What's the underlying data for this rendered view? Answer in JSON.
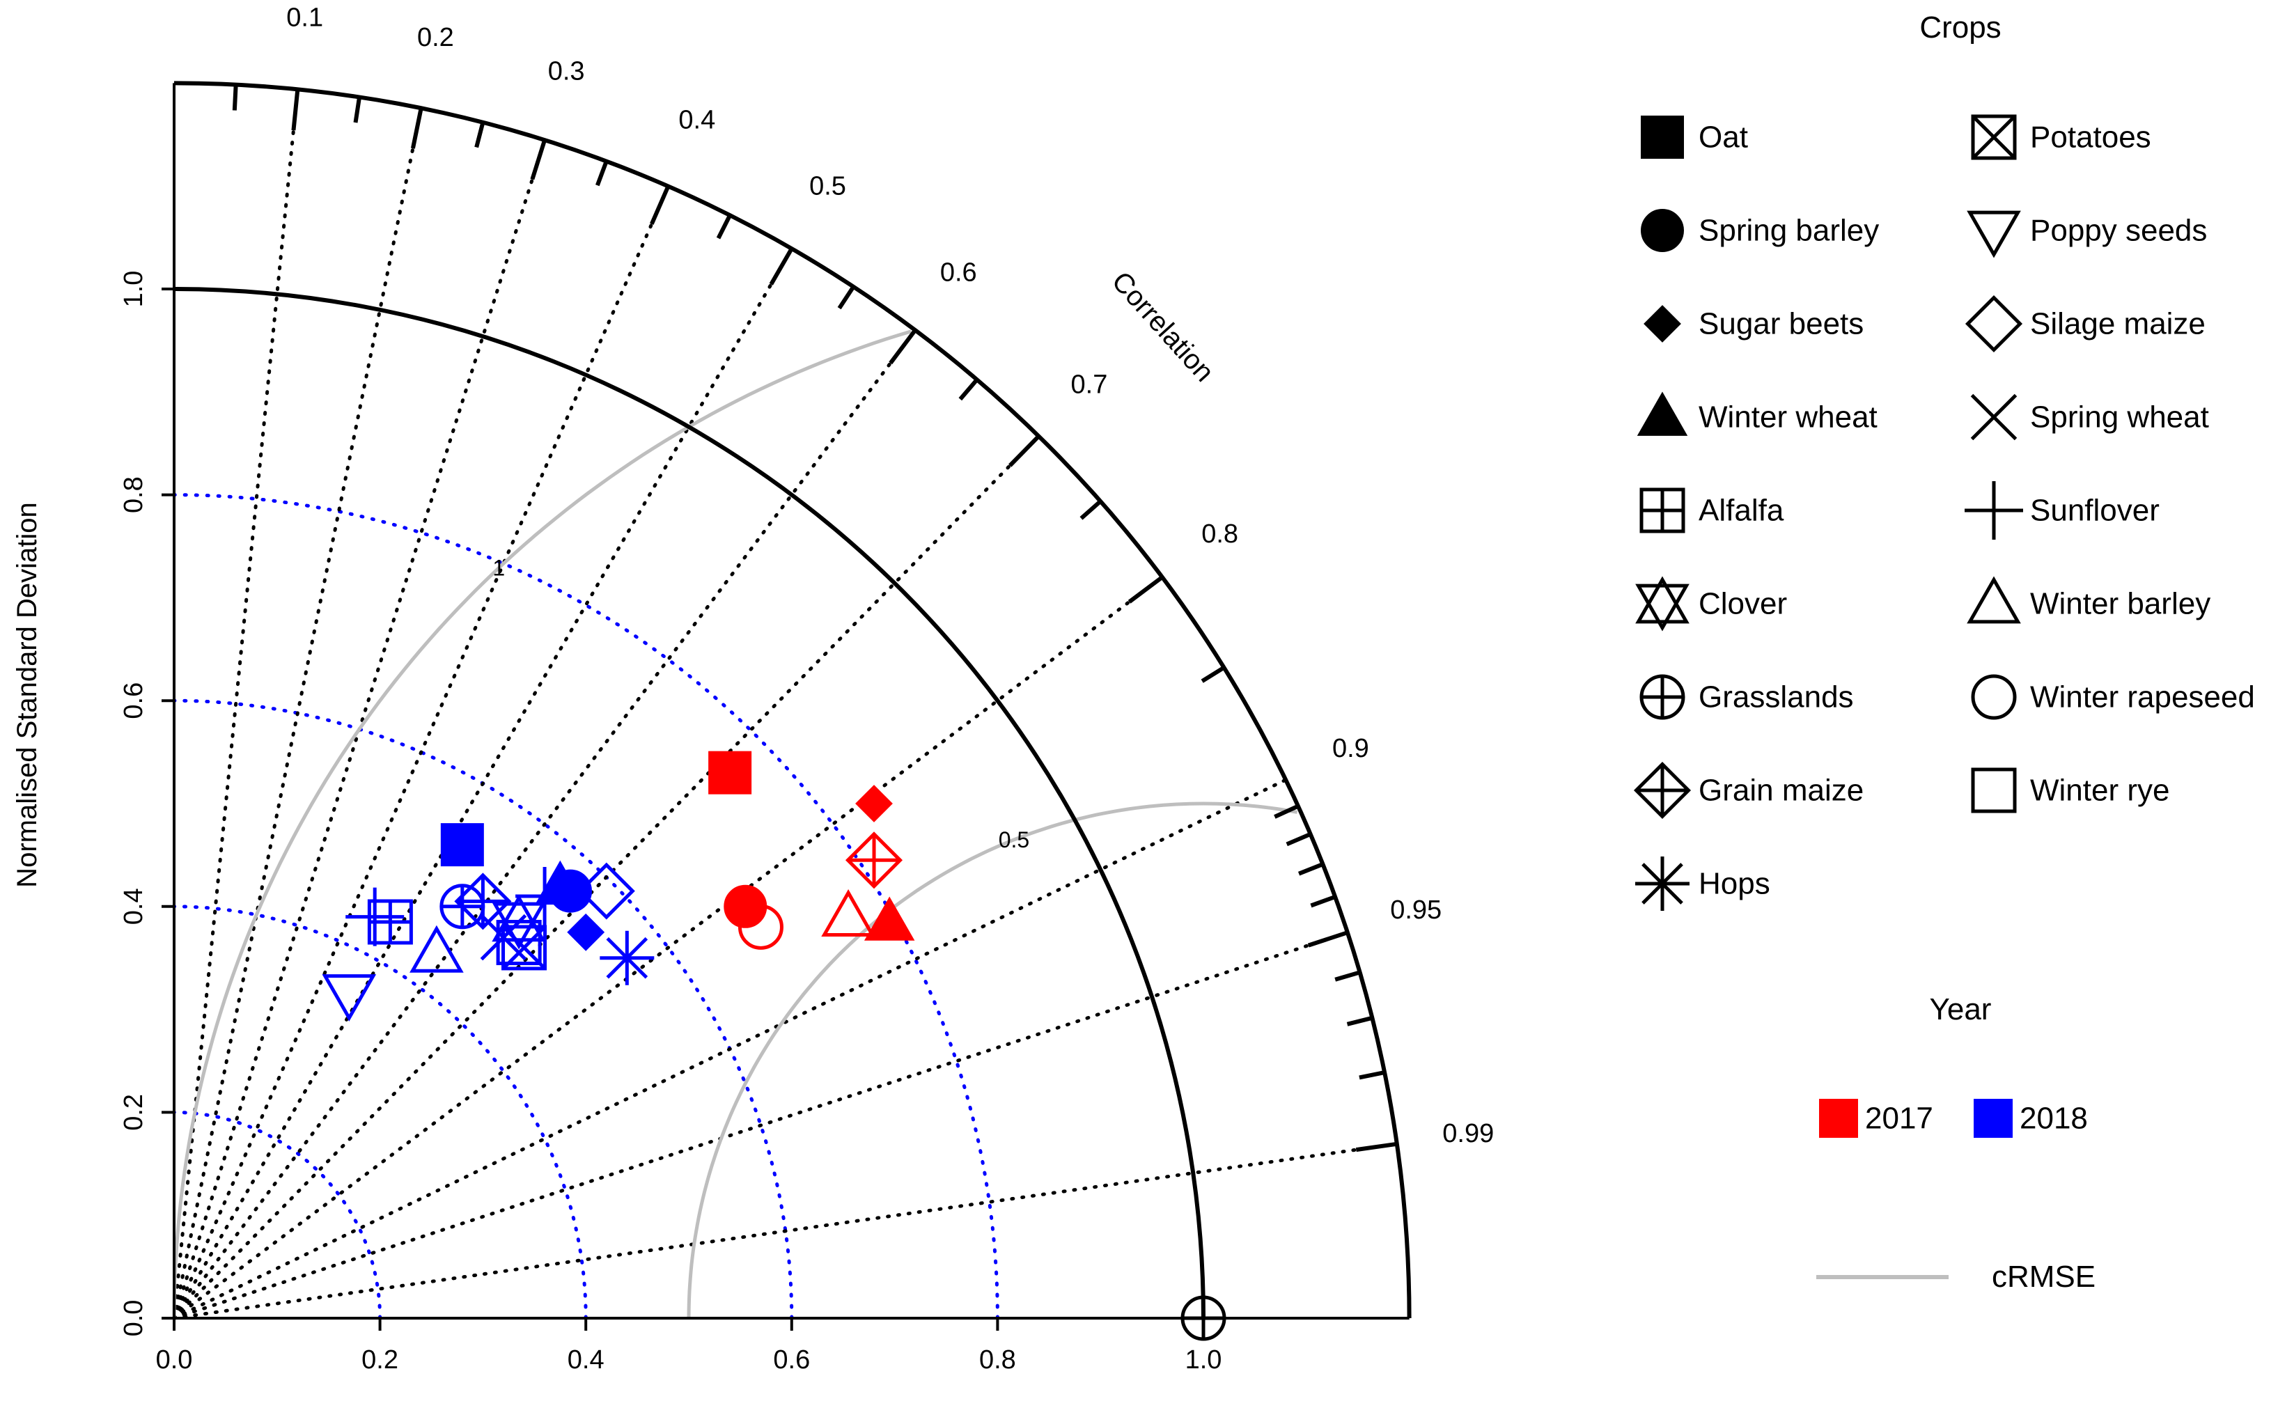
{
  "chart_data": {
    "type": "taylor-diagram",
    "ylabel": "Normalised Standard Deviation",
    "axis_title_correlation": "Correlation",
    "sd_range": [
      0,
      1.2
    ],
    "sd_ticks": [
      "0.0",
      "0.2",
      "0.4",
      "0.6",
      "0.8",
      "1.0"
    ],
    "x_ticks": [
      "0.0",
      "0.2",
      "0.4",
      "0.6",
      "0.8",
      "1.0"
    ],
    "correlation_labels": [
      "0.1",
      "0.2",
      "0.3",
      "0.4",
      "0.5",
      "0.6",
      "0.7",
      "0.8",
      "0.9",
      "0.95",
      "0.99"
    ],
    "sd_reference_circles": [
      0.2,
      0.4,
      0.6,
      0.8
    ],
    "crmse_contours": [
      {
        "value": 0.5,
        "label": "0.5"
      },
      {
        "value": 1.0,
        "label": "1"
      }
    ],
    "reference_point": {
      "sd": 1.0,
      "corr": 1.0
    },
    "crops_legend_title": "Crops",
    "crops": [
      {
        "name": "Oat",
        "marker": "filled-square"
      },
      {
        "name": "Spring barley",
        "marker": "filled-circle"
      },
      {
        "name": "Sugar beets",
        "marker": "filled-diamond"
      },
      {
        "name": "Winter wheat",
        "marker": "filled-triangle"
      },
      {
        "name": "Alfalfa",
        "marker": "square-plus"
      },
      {
        "name": "Clover",
        "marker": "star-of-david"
      },
      {
        "name": "Grasslands",
        "marker": "circle-plus"
      },
      {
        "name": "Grain maize",
        "marker": "diamond-plus"
      },
      {
        "name": "Hops",
        "marker": "asterisk"
      },
      {
        "name": "Potatoes",
        "marker": "square-x"
      },
      {
        "name": "Poppy seeds",
        "marker": "down-triangle"
      },
      {
        "name": "Silage maize",
        "marker": "open-diamond"
      },
      {
        "name": "Spring wheat",
        "marker": "x"
      },
      {
        "name": "Sunflover",
        "marker": "plus"
      },
      {
        "name": "Winter barley",
        "marker": "open-triangle"
      },
      {
        "name": "Winter rapeseed",
        "marker": "open-circle"
      },
      {
        "name": "Winter rye",
        "marker": "open-square"
      }
    ],
    "year_legend_title": "Year",
    "years": [
      {
        "label": "2017",
        "color": "#ff0000"
      },
      {
        "label": "2018",
        "color": "#0000ff"
      }
    ],
    "crmse_legend_label": "cRMSE",
    "crmse_color": "#bebebe",
    "points": [
      {
        "year": "2017",
        "marker": "filled-square",
        "x": 0.54,
        "y": 0.53
      },
      {
        "year": "2017",
        "marker": "filled-circle",
        "x": 0.555,
        "y": 0.4
      },
      {
        "year": "2017",
        "marker": "open-circle",
        "x": 0.57,
        "y": 0.38
      },
      {
        "year": "2017",
        "marker": "open-triangle",
        "x": 0.655,
        "y": 0.39
      },
      {
        "year": "2017",
        "marker": "filled-triangle",
        "x": 0.695,
        "y": 0.385
      },
      {
        "year": "2017",
        "marker": "filled-diamond",
        "x": 0.68,
        "y": 0.5
      },
      {
        "year": "2017",
        "marker": "diamond-plus",
        "x": 0.68,
        "y": 0.445
      },
      {
        "year": "2018",
        "marker": "filled-square",
        "x": 0.28,
        "y": 0.46
      },
      {
        "year": "2018",
        "marker": "plus",
        "x": 0.195,
        "y": 0.39
      },
      {
        "year": "2018",
        "marker": "square-plus",
        "x": 0.21,
        "y": 0.385
      },
      {
        "year": "2018",
        "marker": "down-triangle",
        "x": 0.17,
        "y": 0.315
      },
      {
        "year": "2018",
        "marker": "open-triangle",
        "x": 0.255,
        "y": 0.355
      },
      {
        "year": "2018",
        "marker": "circle-plus",
        "x": 0.28,
        "y": 0.4
      },
      {
        "year": "2018",
        "marker": "diamond-plus",
        "x": 0.3,
        "y": 0.405
      },
      {
        "year": "2018",
        "marker": "star-of-david",
        "x": 0.335,
        "y": 0.385
      },
      {
        "year": "2018",
        "marker": "x",
        "x": 0.32,
        "y": 0.37
      },
      {
        "year": "2018",
        "marker": "square-x",
        "x": 0.34,
        "y": 0.36
      },
      {
        "year": "2018",
        "marker": "open-square",
        "x": 0.335,
        "y": 0.365
      },
      {
        "year": "2018",
        "marker": "plus",
        "x": 0.36,
        "y": 0.41
      },
      {
        "year": "2018",
        "marker": "filled-triangle",
        "x": 0.375,
        "y": 0.42
      },
      {
        "year": "2018",
        "marker": "filled-circle",
        "x": 0.385,
        "y": 0.415
      },
      {
        "year": "2018",
        "marker": "open-diamond",
        "x": 0.42,
        "y": 0.415
      },
      {
        "year": "2018",
        "marker": "filled-diamond",
        "x": 0.4,
        "y": 0.375
      },
      {
        "year": "2018",
        "marker": "asterisk",
        "x": 0.44,
        "y": 0.35
      }
    ]
  }
}
